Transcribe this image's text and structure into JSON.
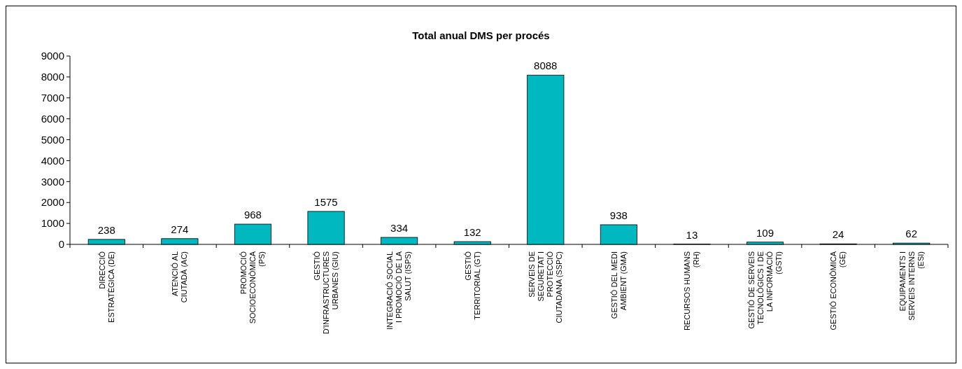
{
  "chart_data": {
    "type": "bar",
    "title": "Total anual DMS per procés",
    "categories": [
      "DIRECCIÓ ESTRATÈGICA (DE)",
      "ATENCIÓ AL CIUTADÀ (AC)",
      "PROMOCIÓ SOCIOECONÒMICA (PS)",
      "GESTIÓ D'INFRASTRUCTURES URBANES (GIU)",
      "INTEGRACIÓ SOCIAL I PROMOCIÓ DE LA SALUT (ISPS)",
      "GESTIÓ TERRITORIAL (GT)",
      "SERVEIS DE SEGURETAT I PROTECCIÓ CIUTADANA (SSPC)",
      "GESTIÓ DEL MEDI AMBIENT (GMA)",
      "RECURSOS HUMANS (RH)",
      "GESTIÓ DE SERVEIS TECNOLÒGICS I DE LA INFORMACIÓ (GSTI)",
      "GESTIÓ ECONÒMICA (GE)",
      "EQUIPAMENTS I SERVEIS INTERNS (ESI)"
    ],
    "values": [
      238,
      274,
      968,
      1575,
      334,
      132,
      8088,
      938,
      13,
      109,
      24,
      62
    ],
    "color": "#00b8c0",
    "data_labels": true,
    "ylim": [
      0,
      9000
    ],
    "yticks": [
      0,
      1000,
      2000,
      3000,
      4000,
      5000,
      6000,
      7000,
      8000,
      9000
    ],
    "grid": false
  }
}
